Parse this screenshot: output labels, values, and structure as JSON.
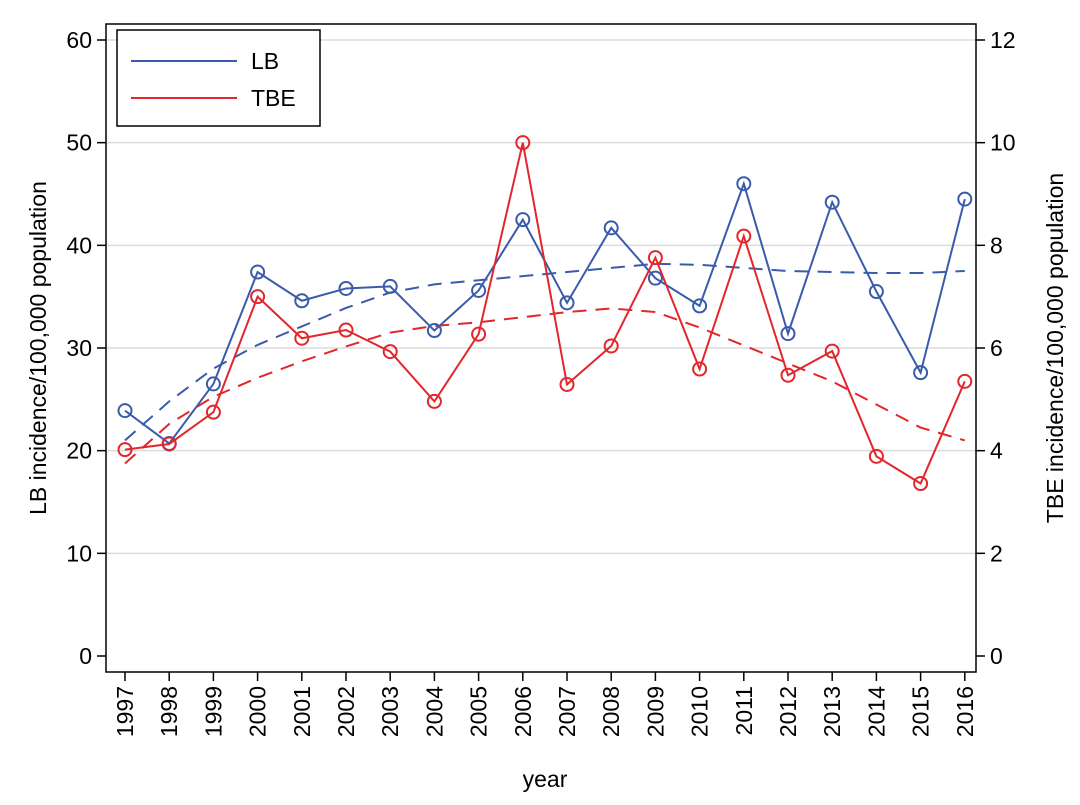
{
  "chart_data": {
    "type": "line",
    "x": [
      1997,
      1998,
      1999,
      2000,
      2001,
      2002,
      2003,
      2004,
      2005,
      2006,
      2007,
      2008,
      2009,
      2010,
      2011,
      2012,
      2013,
      2014,
      2015,
      2016
    ],
    "xlabel": "year",
    "ylabel_left": "LB incidence/100,000 population",
    "ylabel_right": "TBE incidence/100,000 population",
    "ylim_left": [
      0,
      60
    ],
    "ylim_right": [
      0,
      12
    ],
    "yticks_left": [
      0,
      10,
      20,
      30,
      40,
      50,
      60
    ],
    "yticks_right": [
      0,
      2,
      4,
      6,
      8,
      10,
      12
    ],
    "grid": "horizontal",
    "legend_position": "top-left",
    "series": [
      {
        "name": "LB",
        "axis": "left",
        "color": "#3a5bab",
        "marker": "circle",
        "values": [
          23.9,
          20.7,
          26.5,
          37.4,
          34.6,
          35.8,
          36.0,
          31.7,
          35.6,
          42.5,
          34.4,
          41.7,
          36.8,
          34.1,
          46.0,
          31.4,
          44.2,
          35.5,
          27.6,
          44.5
        ]
      },
      {
        "name": "TBE",
        "axis": "right",
        "color": "#e3262b",
        "marker": "circle",
        "values": [
          4.02,
          4.13,
          4.75,
          7.0,
          6.19,
          6.35,
          5.93,
          4.96,
          6.27,
          10.0,
          5.29,
          6.04,
          7.76,
          5.59,
          8.18,
          5.47,
          5.94,
          3.89,
          3.36,
          5.35
        ]
      }
    ],
    "trend_lines": [
      {
        "axis": "left",
        "color": "#3a5bab",
        "style": "dashed",
        "values": [
          21.0,
          24.8,
          28.0,
          30.3,
          32.1,
          33.9,
          35.4,
          36.2,
          36.6,
          37.0,
          37.4,
          37.8,
          38.2,
          38.1,
          37.8,
          37.5,
          37.4,
          37.3,
          37.3,
          37.5
        ]
      },
      {
        "axis": "right",
        "color": "#e3262b",
        "style": "dashed",
        "values": [
          3.75,
          4.52,
          5.05,
          5.42,
          5.74,
          6.03,
          6.3,
          6.43,
          6.5,
          6.6,
          6.7,
          6.77,
          6.7,
          6.4,
          6.05,
          5.7,
          5.35,
          4.9,
          4.45,
          4.2
        ]
      }
    ]
  }
}
